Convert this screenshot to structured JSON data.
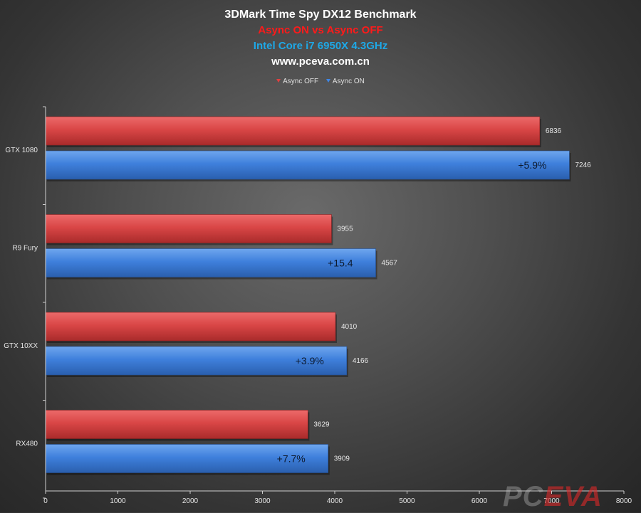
{
  "chart_data": {
    "type": "bar",
    "orientation": "horizontal",
    "title": "3DMark Time Spy DX12 Benchmark",
    "subtitles": [
      "Async ON vs Async OFF",
      "Intel Core i7 6950X 4.3GHz",
      "www.pceva.com.cn"
    ],
    "categories": [
      "GTX 1080",
      "R9 Fury",
      "GTX 10XX",
      "RX480"
    ],
    "series": [
      {
        "name": "Async OFF",
        "color": "#d64545",
        "values": [
          6836,
          3955,
          4010,
          3629
        ],
        "labels": [
          "6836",
          "3955",
          "4010",
          "3629"
        ]
      },
      {
        "name": "Async ON",
        "color": "#3f7fd6",
        "values": [
          7246,
          4567,
          4166,
          3909
        ],
        "labels": [
          "7246",
          "4567",
          "4166",
          "3909"
        ]
      }
    ],
    "gain_labels": [
      "+5.9%",
      "+15.4",
      "+3.9%",
      "+7.7%"
    ],
    "xlim": [
      0,
      8000
    ],
    "xticks": [
      "0",
      "1000",
      "2000",
      "3000",
      "4000",
      "5000",
      "6000",
      "7000",
      "8000"
    ],
    "legend_position": "top",
    "grid": false
  },
  "colors": {
    "title": "#ffffff",
    "subtitle_1": "#ff1a1a",
    "subtitle_2": "#1ea8e6",
    "subtitle_3": "#ffffff"
  },
  "watermark": {
    "part1": "PC",
    "part2": "EVA"
  }
}
